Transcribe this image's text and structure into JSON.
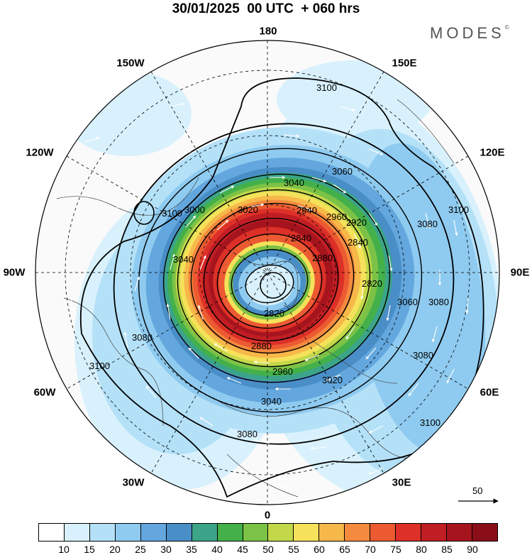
{
  "header": {
    "title": "30/01/2025  00 UTC  + 060 hrs",
    "brand": "MODES",
    "brand_mark": "©"
  },
  "map": {
    "projection": "north-polar-stereographic",
    "longitude_labels": [
      "180",
      "150E",
      "120E",
      "90E",
      "60E",
      "30E",
      "0",
      "30W",
      "60W",
      "90W",
      "120W",
      "150W"
    ],
    "contour_labels": [
      "3100",
      "3060",
      "3040",
      "3020",
      "3000",
      "2960",
      "2940",
      "2920",
      "2880",
      "2840",
      "2820",
      "3080",
      "3100",
      "3100",
      "3080",
      "3060",
      "3080",
      "3100",
      "3040",
      "3020",
      "2960",
      "2880",
      "2820",
      "2840",
      "3080",
      "3100",
      "3040",
      "3080"
    ],
    "wind_reference_vector": "50"
  },
  "colorbar": {
    "colors": [
      "#ffffff",
      "#d8f1fd",
      "#b4e1f8",
      "#8fcbf0",
      "#63a7de",
      "#4a8ec8",
      "#3ca488",
      "#44b04a",
      "#7cc246",
      "#c2d84a",
      "#f5e15a",
      "#f7b84a",
      "#f48a3e",
      "#ec5a32",
      "#dc3028",
      "#c01e24",
      "#a6141e",
      "#8a0e18"
    ],
    "ticks": [
      "10",
      "15",
      "20",
      "25",
      "30",
      "35",
      "40",
      "45",
      "50",
      "55",
      "60",
      "65",
      "70",
      "75",
      "80",
      "85",
      "90"
    ]
  }
}
